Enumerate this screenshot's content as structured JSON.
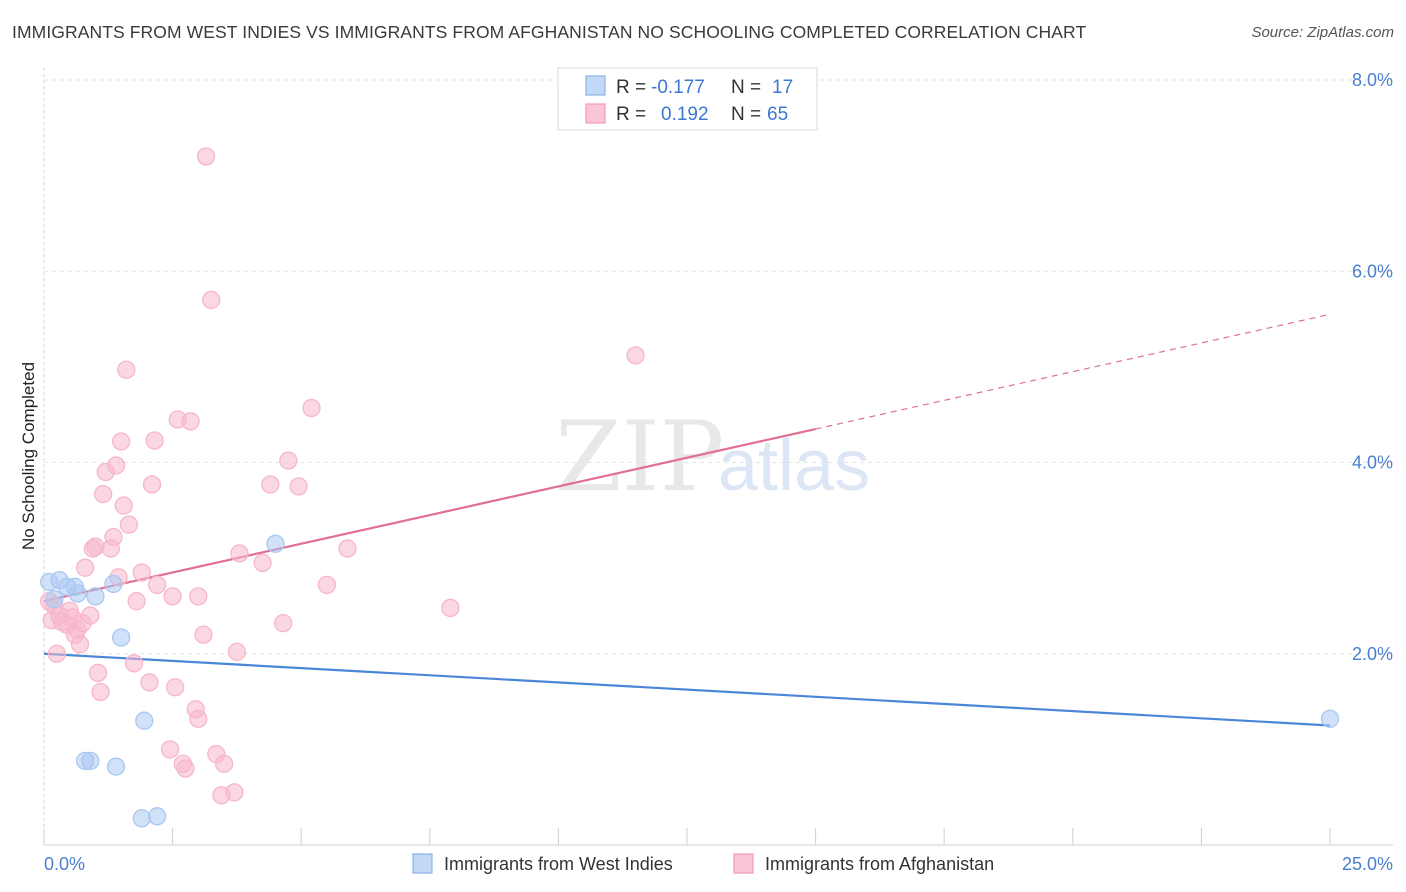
{
  "title": "IMMIGRANTS FROM WEST INDIES VS IMMIGRANTS FROM AFGHANISTAN NO SCHOOLING COMPLETED CORRELATION CHART",
  "source": "Source: ZipAtlas.com",
  "watermark": {
    "zip": "ZIP",
    "atlas": "atlas"
  },
  "legend_top": [
    {
      "r_label": "R =",
      "r_value": "-0.177",
      "n_label": "N =",
      "n_value": "17",
      "color": "#a9c8f2"
    },
    {
      "r_label": "R =",
      "r_value": "0.192",
      "n_label": "N =",
      "n_value": "65",
      "color": "#f7b6ca"
    }
  ],
  "chart_data": {
    "type": "scatter",
    "title": "IMMIGRANTS FROM WEST INDIES VS IMMIGRANTS FROM AFGHANISTAN NO SCHOOLING COMPLETED CORRELATION CHART",
    "xlabel": "",
    "ylabel": "No Schooling Completed",
    "xlim": [
      0,
      25
    ],
    "ylim": [
      0,
      8
    ],
    "x_tick_labels": [
      "0.0%",
      "25.0%"
    ],
    "y_ticks": [
      2,
      4,
      6,
      8
    ],
    "y_tick_labels": [
      "2.0%",
      "4.0%",
      "6.0%",
      "8.0%"
    ],
    "grid": true,
    "series": [
      {
        "name": "Immigrants from West Indies",
        "color": "#4a86d8",
        "fill": "#a9c8f2",
        "points": [
          [
            0.1,
            2.75
          ],
          [
            0.2,
            2.57
          ],
          [
            0.3,
            2.77
          ],
          [
            0.45,
            2.7
          ],
          [
            0.6,
            2.7
          ],
          [
            0.65,
            2.63
          ],
          [
            1.0,
            2.6
          ],
          [
            1.35,
            2.73
          ],
          [
            1.5,
            2.17
          ],
          [
            1.95,
            1.3
          ],
          [
            0.8,
            0.88
          ],
          [
            0.9,
            0.88
          ],
          [
            1.4,
            0.82
          ],
          [
            1.9,
            0.28
          ],
          [
            2.2,
            0.3
          ],
          [
            4.5,
            3.15
          ],
          [
            25.0,
            1.32
          ]
        ],
        "trend": {
          "x0": 0,
          "y0": 2.0,
          "x1": 25,
          "y1": 1.25,
          "dashed_from": null
        }
      },
      {
        "name": "Immigrants from Afghanistan",
        "color": "#e06e95",
        "fill": "#f7b6ca",
        "points": [
          [
            0.1,
            2.55
          ],
          [
            0.15,
            2.35
          ],
          [
            0.2,
            2.5
          ],
          [
            0.25,
            2.0
          ],
          [
            0.3,
            2.4
          ],
          [
            0.35,
            2.33
          ],
          [
            0.45,
            2.3
          ],
          [
            0.5,
            2.45
          ],
          [
            0.55,
            2.38
          ],
          [
            0.6,
            2.2
          ],
          [
            0.65,
            2.25
          ],
          [
            0.7,
            2.1
          ],
          [
            0.75,
            2.32
          ],
          [
            0.8,
            2.9
          ],
          [
            0.9,
            2.4
          ],
          [
            0.95,
            3.1
          ],
          [
            1.0,
            3.12
          ],
          [
            1.05,
            1.8
          ],
          [
            1.1,
            1.6
          ],
          [
            1.15,
            3.67
          ],
          [
            1.2,
            3.9
          ],
          [
            1.3,
            3.1
          ],
          [
            1.35,
            3.22
          ],
          [
            1.4,
            3.97
          ],
          [
            1.45,
            2.8
          ],
          [
            1.5,
            4.22
          ],
          [
            1.55,
            3.55
          ],
          [
            1.6,
            4.97
          ],
          [
            1.65,
            3.35
          ],
          [
            1.75,
            1.9
          ],
          [
            1.8,
            2.55
          ],
          [
            1.9,
            2.85
          ],
          [
            2.05,
            1.7
          ],
          [
            2.1,
            3.77
          ],
          [
            2.15,
            4.23
          ],
          [
            2.2,
            2.72
          ],
          [
            2.45,
            1.0
          ],
          [
            2.5,
            2.6
          ],
          [
            2.55,
            1.65
          ],
          [
            2.6,
            4.45
          ],
          [
            2.7,
            0.85
          ],
          [
            2.75,
            0.8
          ],
          [
            2.85,
            4.43
          ],
          [
            2.95,
            1.42
          ],
          [
            3.0,
            1.32
          ],
          [
            3.1,
            2.2
          ],
          [
            3.15,
            7.2
          ],
          [
            3.25,
            5.7
          ],
          [
            3.35,
            0.95
          ],
          [
            3.45,
            0.52
          ],
          [
            3.5,
            0.85
          ],
          [
            3.7,
            0.55
          ],
          [
            3.75,
            2.02
          ],
          [
            3.8,
            3.05
          ],
          [
            4.25,
            2.95
          ],
          [
            4.4,
            3.77
          ],
          [
            4.65,
            2.32
          ],
          [
            4.75,
            4.02
          ],
          [
            4.95,
            3.75
          ],
          [
            5.2,
            4.57
          ],
          [
            5.5,
            2.72
          ],
          [
            5.9,
            3.1
          ],
          [
            7.9,
            2.48
          ],
          [
            11.5,
            5.12
          ],
          [
            3.0,
            2.6
          ]
        ],
        "trend": {
          "x0": 0,
          "y0": 2.55,
          "x1": 25,
          "y1": 5.55,
          "dashed_from": 15
        }
      }
    ]
  }
}
